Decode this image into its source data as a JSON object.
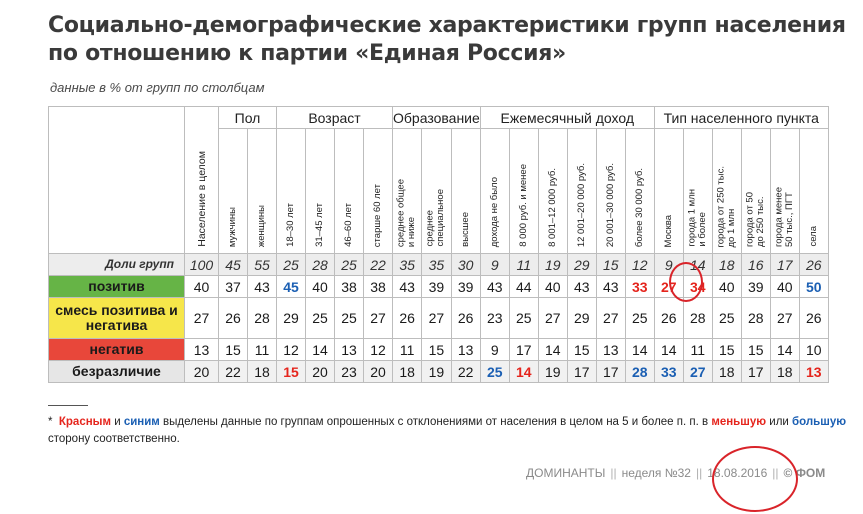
{
  "title": "Социально-демографические характеристики групп населения по отношению к партии «Единая Россия»",
  "subtitle": "данные в % от групп по столбцам",
  "groups": {
    "sex": "Пол",
    "age": "Возраст",
    "edu": "Образование",
    "income": "Ежемесячный доход",
    "settlement": "Тип населенного пункта"
  },
  "columns": [
    "Население в целом",
    "мужчины",
    "женщины",
    "18–30 лет",
    "31–45 лет",
    "46–60 лет",
    "старше 60 лет",
    "среднее общее\nи ниже",
    "среднее\nспециальное",
    "высшее",
    "дохода не было",
    "8 000 руб. и менее",
    "8 001–12 000 руб.",
    "12 001–20 000 руб.",
    "20 001–30 000 руб.",
    "более 30 000 руб.",
    "Москва",
    "города 1 млн\nи более",
    "города от 250 тыс.\nдо 1 млн",
    "города от 50\nдо 250 тыс.",
    "города менее\n50 тыс., ПГТ",
    "села"
  ],
  "group_sizes": {
    "label": "Доли групп",
    "values": [
      "100",
      "45",
      "55",
      "25",
      "28",
      "25",
      "22",
      "35",
      "35",
      "30",
      "9",
      "11",
      "19",
      "29",
      "15",
      "12",
      "9",
      "14",
      "18",
      "16",
      "17",
      "26"
    ]
  },
  "rows": [
    {
      "label": "позитив",
      "values": [
        "40",
        "37",
        "43",
        "45",
        "40",
        "38",
        "38",
        "43",
        "39",
        "39",
        "43",
        "44",
        "40",
        "43",
        "43",
        "33",
        "27",
        "34",
        "40",
        "39",
        "40",
        "50"
      ],
      "highlight": [
        "",
        "",
        "",
        "blue",
        "",
        "",
        "",
        "",
        "",
        "",
        "",
        "",
        "",
        "",
        "",
        "red",
        "red",
        "red",
        "",
        "",
        "",
        "blue"
      ]
    },
    {
      "label": "смесь позитива и негатива",
      "values": [
        "27",
        "26",
        "28",
        "29",
        "25",
        "25",
        "27",
        "26",
        "27",
        "26",
        "23",
        "25",
        "27",
        "29",
        "27",
        "25",
        "26",
        "28",
        "25",
        "28",
        "27",
        "26"
      ],
      "highlight": [
        "",
        "",
        "",
        "",
        "",
        "",
        "",
        "",
        "",
        "",
        "",
        "",
        "",
        "",
        "",
        "",
        "",
        "",
        "",
        "",
        "",
        ""
      ]
    },
    {
      "label": "негатив",
      "values": [
        "13",
        "15",
        "11",
        "12",
        "14",
        "13",
        "12",
        "11",
        "15",
        "13",
        "9",
        "17",
        "14",
        "15",
        "13",
        "14",
        "14",
        "11",
        "15",
        "15",
        "14",
        "10"
      ],
      "highlight": [
        "",
        "",
        "",
        "",
        "",
        "",
        "",
        "",
        "",
        "",
        "",
        "",
        "",
        "",
        "",
        "",
        "",
        "",
        "",
        "",
        "",
        ""
      ]
    },
    {
      "label": "безразличие",
      "values": [
        "20",
        "22",
        "18",
        "15",
        "20",
        "23",
        "20",
        "18",
        "19",
        "22",
        "25",
        "14",
        "19",
        "17",
        "17",
        "28",
        "33",
        "27",
        "18",
        "17",
        "18",
        "13"
      ],
      "highlight": [
        "",
        "",
        "",
        "red",
        "",
        "",
        "",
        "",
        "",
        "",
        "blue",
        "red",
        "",
        "",
        "",
        "blue",
        "blue",
        "blue",
        "",
        "",
        "",
        "red"
      ]
    }
  ],
  "footnote": {
    "star": "*",
    "red_word": "Красным",
    "and": "и",
    "blue_word": "синим",
    "text1": "выделены данные по группам опрошенных с отклонениями от населения в целом на 5 и более п. п. в",
    "less_word": "меньшую",
    "or": "или",
    "more_word": "большую",
    "text2": "сторону соответственно."
  },
  "brand": {
    "name": "ДОМИНАНТЫ",
    "sep": "||",
    "week": "неделя №32",
    "date": "18.08.2016",
    "copyright": "© ФОМ"
  },
  "colors": {
    "positive": "#66b446",
    "mixed": "#f6e64a",
    "negative": "#e8473a",
    "indifferent": "#e6e6e6",
    "red_highlight": "#e5251d",
    "blue_highlight": "#1b5fb3",
    "circle_annotation": "#d9242a"
  }
}
